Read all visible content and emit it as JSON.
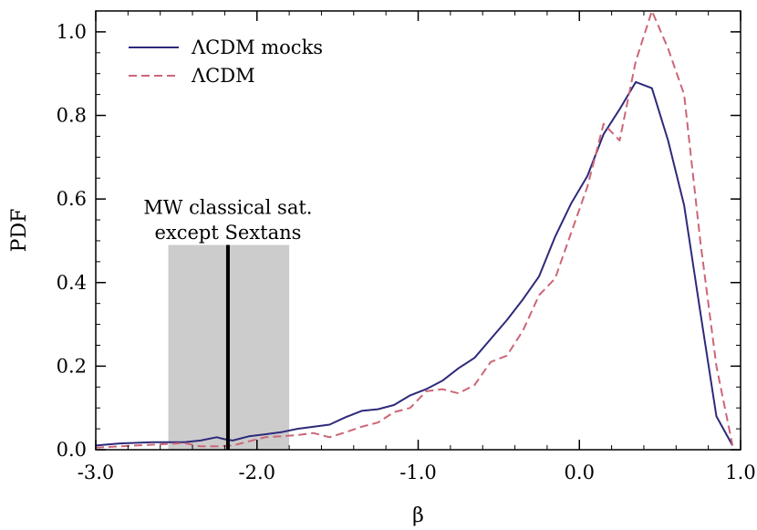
{
  "chart_data": {
    "type": "line",
    "xlabel": "β",
    "ylabel": "PDF",
    "xlim": [
      -3.0,
      1.0
    ],
    "ylim": [
      0.0,
      1.05
    ],
    "x_ticks": [
      -3.0,
      -2.0,
      -1.0,
      0.0,
      1.0
    ],
    "x_tick_labels": [
      "-3.0",
      "-2.0",
      "-1.0",
      "0.0",
      "1.0"
    ],
    "y_ticks": [
      0.0,
      0.2,
      0.4,
      0.6,
      0.8,
      1.0
    ],
    "y_tick_labels": [
      "0.0",
      "0.2",
      "0.4",
      "0.6",
      "0.8",
      "1.0"
    ],
    "grid": false,
    "legend_position": "top-left",
    "series": [
      {
        "name": "ΛCDM mocks",
        "color": "#2e2a7a",
        "dash": "solid",
        "x": [
          -3.0,
          -2.85,
          -2.65,
          -2.45,
          -2.35,
          -2.25,
          -2.2,
          -2.15,
          -2.05,
          -1.95,
          -1.85,
          -1.75,
          -1.55,
          -1.45,
          -1.35,
          -1.25,
          -1.15,
          -1.05,
          -0.95,
          -0.85,
          -0.75,
          -0.65,
          -0.55,
          -0.45,
          -0.35,
          -0.25,
          -0.15,
          -0.05,
          0.05,
          0.15,
          0.25,
          0.35,
          0.45,
          0.55,
          0.65,
          0.75,
          0.85,
          0.95
        ],
        "y": [
          0.01,
          0.015,
          0.018,
          0.018,
          0.022,
          0.03,
          0.025,
          0.022,
          0.032,
          0.037,
          0.042,
          0.05,
          0.06,
          0.078,
          0.093,
          0.097,
          0.107,
          0.13,
          0.145,
          0.165,
          0.195,
          0.22,
          0.265,
          0.31,
          0.36,
          0.415,
          0.51,
          0.59,
          0.655,
          0.755,
          0.815,
          0.88,
          0.865,
          0.74,
          0.585,
          0.33,
          0.08,
          0.01
        ]
      },
      {
        "name": "ΛCDM",
        "color": "#cc6677",
        "dash": "dashed",
        "x": [
          -3.0,
          -2.85,
          -2.65,
          -2.45,
          -2.35,
          -2.25,
          -2.15,
          -2.05,
          -1.95,
          -1.85,
          -1.75,
          -1.65,
          -1.55,
          -1.45,
          -1.35,
          -1.25,
          -1.15,
          -1.05,
          -0.95,
          -0.85,
          -0.75,
          -0.65,
          -0.55,
          -0.45,
          -0.35,
          -0.25,
          -0.15,
          -0.05,
          0.05,
          0.15,
          0.25,
          0.35,
          0.45,
          0.55,
          0.65,
          0.75,
          0.85,
          0.95
        ],
        "y": [
          0.005,
          0.008,
          0.012,
          0.016,
          0.008,
          0.008,
          0.01,
          0.02,
          0.03,
          0.032,
          0.035,
          0.04,
          0.03,
          0.042,
          0.055,
          0.065,
          0.09,
          0.1,
          0.14,
          0.145,
          0.135,
          0.155,
          0.21,
          0.225,
          0.285,
          0.37,
          0.41,
          0.52,
          0.63,
          0.78,
          0.74,
          0.93,
          1.05,
          0.96,
          0.85,
          0.5,
          0.2,
          0.01
        ]
      }
    ],
    "shaded_band": {
      "x_min": -2.55,
      "x_max": -1.8,
      "y_max": 0.49,
      "color": "#cccccc"
    },
    "vertical_line": {
      "x": -2.18,
      "color": "#000000"
    },
    "annotation": {
      "lines": [
        "MW classical sat.",
        "except Sextans"
      ],
      "x": -2.18,
      "y_top": 0.58,
      "y_bottom": 0.52
    }
  }
}
